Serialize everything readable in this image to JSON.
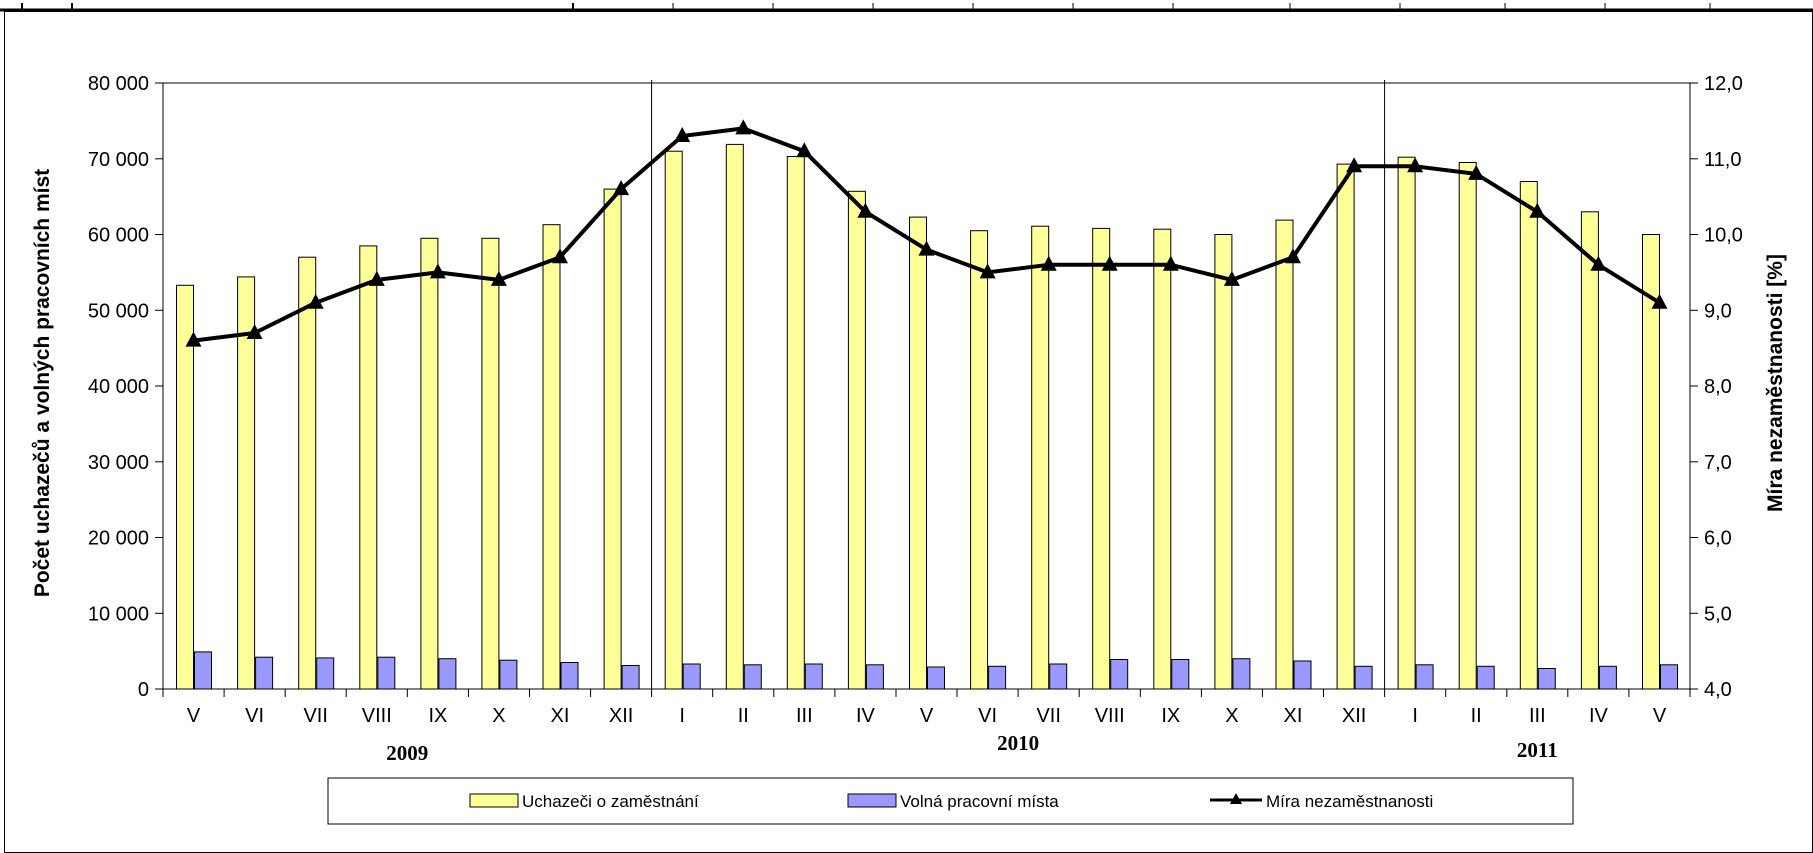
{
  "chart_data": {
    "type": "bar",
    "categories": [
      "V",
      "VI",
      "VII",
      "VIII",
      "IX",
      "X",
      "XI",
      "XII",
      "I",
      "II",
      "III",
      "IV",
      "V",
      "VI",
      "VII",
      "VIII",
      "IX",
      "X",
      "XI",
      "XII",
      "I",
      "II",
      "III",
      "IV",
      "V"
    ],
    "years": [
      {
        "label": "2009",
        "start": 0,
        "end": 7
      },
      {
        "label": "2010",
        "start": 8,
        "end": 19
      },
      {
        "label": "2011",
        "start": 20,
        "end": 24
      }
    ],
    "series": [
      {
        "name": "Uchazeči o zaměstnání",
        "type": "bar",
        "axis": "left",
        "color": "#ffff99",
        "values": [
          53300,
          54400,
          57000,
          58500,
          59500,
          59500,
          61300,
          66000,
          71000,
          71900,
          70300,
          65700,
          62300,
          60500,
          61100,
          60800,
          60700,
          60000,
          61900,
          69300,
          70200,
          69500,
          67000,
          63000,
          60000
        ]
      },
      {
        "name": "Volná pracovní místa",
        "type": "bar",
        "axis": "left",
        "color": "#9999ff",
        "values": [
          4900,
          4200,
          4100,
          4200,
          4000,
          3800,
          3500,
          3100,
          3300,
          3200,
          3300,
          3200,
          2900,
          3000,
          3300,
          3900,
          3900,
          4000,
          3700,
          3000,
          3200,
          3000,
          2700,
          3000,
          3200
        ]
      },
      {
        "name": "Míra nezaměstnanosti",
        "type": "line",
        "axis": "right",
        "color": "#000000",
        "values": [
          8.6,
          8.7,
          9.1,
          9.4,
          9.5,
          9.4,
          9.7,
          10.6,
          11.3,
          11.4,
          11.1,
          10.3,
          9.8,
          9.5,
          9.6,
          9.6,
          9.6,
          9.4,
          9.7,
          10.9,
          10.9,
          10.8,
          10.3,
          9.6,
          9.1
        ]
      }
    ],
    "ylabel": "Počet uchazečů a volných pracovních míst",
    "y2label": "Míra nezaměstnanosti [%]",
    "ylim": [
      0,
      80000
    ],
    "yticks": [
      "0",
      "10 000",
      "20 000",
      "30 000",
      "40 000",
      "50 000",
      "60 000",
      "70 000",
      "80 000"
    ],
    "y2lim": [
      4.0,
      12.0
    ],
    "y2ticks": [
      "4,0",
      "5,0",
      "6,0",
      "7,0",
      "8,0",
      "9,0",
      "10,0",
      "11,0",
      "12,0"
    ],
    "grid": false,
    "legend_position": "bottom"
  }
}
